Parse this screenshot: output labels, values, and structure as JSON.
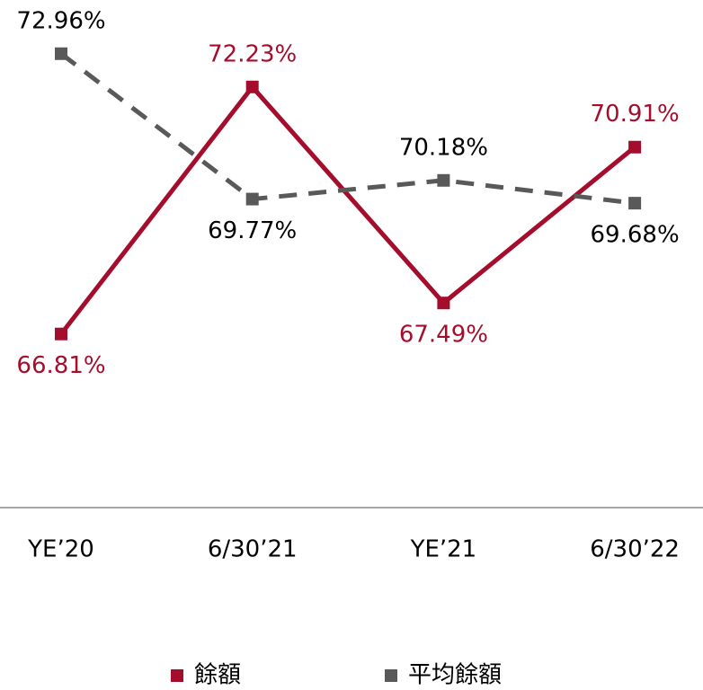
{
  "chart_data": {
    "type": "line",
    "categories": [
      "YE’20",
      "6/30’21",
      "YE’21",
      "6/30’22"
    ],
    "series": [
      {
        "name": "餘額",
        "color": "#a50d2d",
        "values": [
          66.81,
          72.23,
          67.49,
          70.91
        ],
        "value_labels": [
          "66.81%",
          "72.23%",
          "67.49%",
          "70.91%"
        ]
      },
      {
        "name": "平均餘額",
        "color": "#595959",
        "dashed": true,
        "values": [
          72.96,
          69.77,
          70.18,
          69.68
        ],
        "value_labels": [
          "72.96%",
          "69.77%",
          "70.18%",
          "69.68%"
        ]
      }
    ],
    "ylim": [
      63,
      74
    ]
  }
}
